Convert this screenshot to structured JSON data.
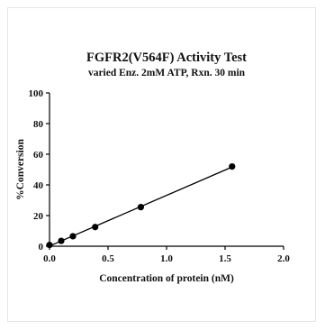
{
  "chart_data": {
    "type": "scatter",
    "title": "FGFR2(V564F) Activity Test",
    "subtitle": "varied Enz. 2mM ATP, Rxn. 30 min",
    "xlabel": "Concentration of protein (nM)",
    "ylabel": "%Conversion",
    "xlim": [
      0.0,
      2.0
    ],
    "ylim": [
      0,
      100
    ],
    "xticks": [
      "0.0",
      "0.5",
      "1.0",
      "1.5",
      "2.0"
    ],
    "yticks": [
      "0",
      "20",
      "40",
      "60",
      "80",
      "100"
    ],
    "grid": false,
    "legend": "none",
    "fit_line": "linear",
    "series": [
      {
        "x": [
          0.0,
          0.1,
          0.2,
          0.39,
          0.78,
          1.56
        ],
        "y": [
          0.8,
          3.5,
          6.5,
          12.5,
          25.5,
          52.0
        ]
      }
    ],
    "colors": {
      "points": "#000000",
      "line": "#000000",
      "axis": "#000000"
    }
  }
}
